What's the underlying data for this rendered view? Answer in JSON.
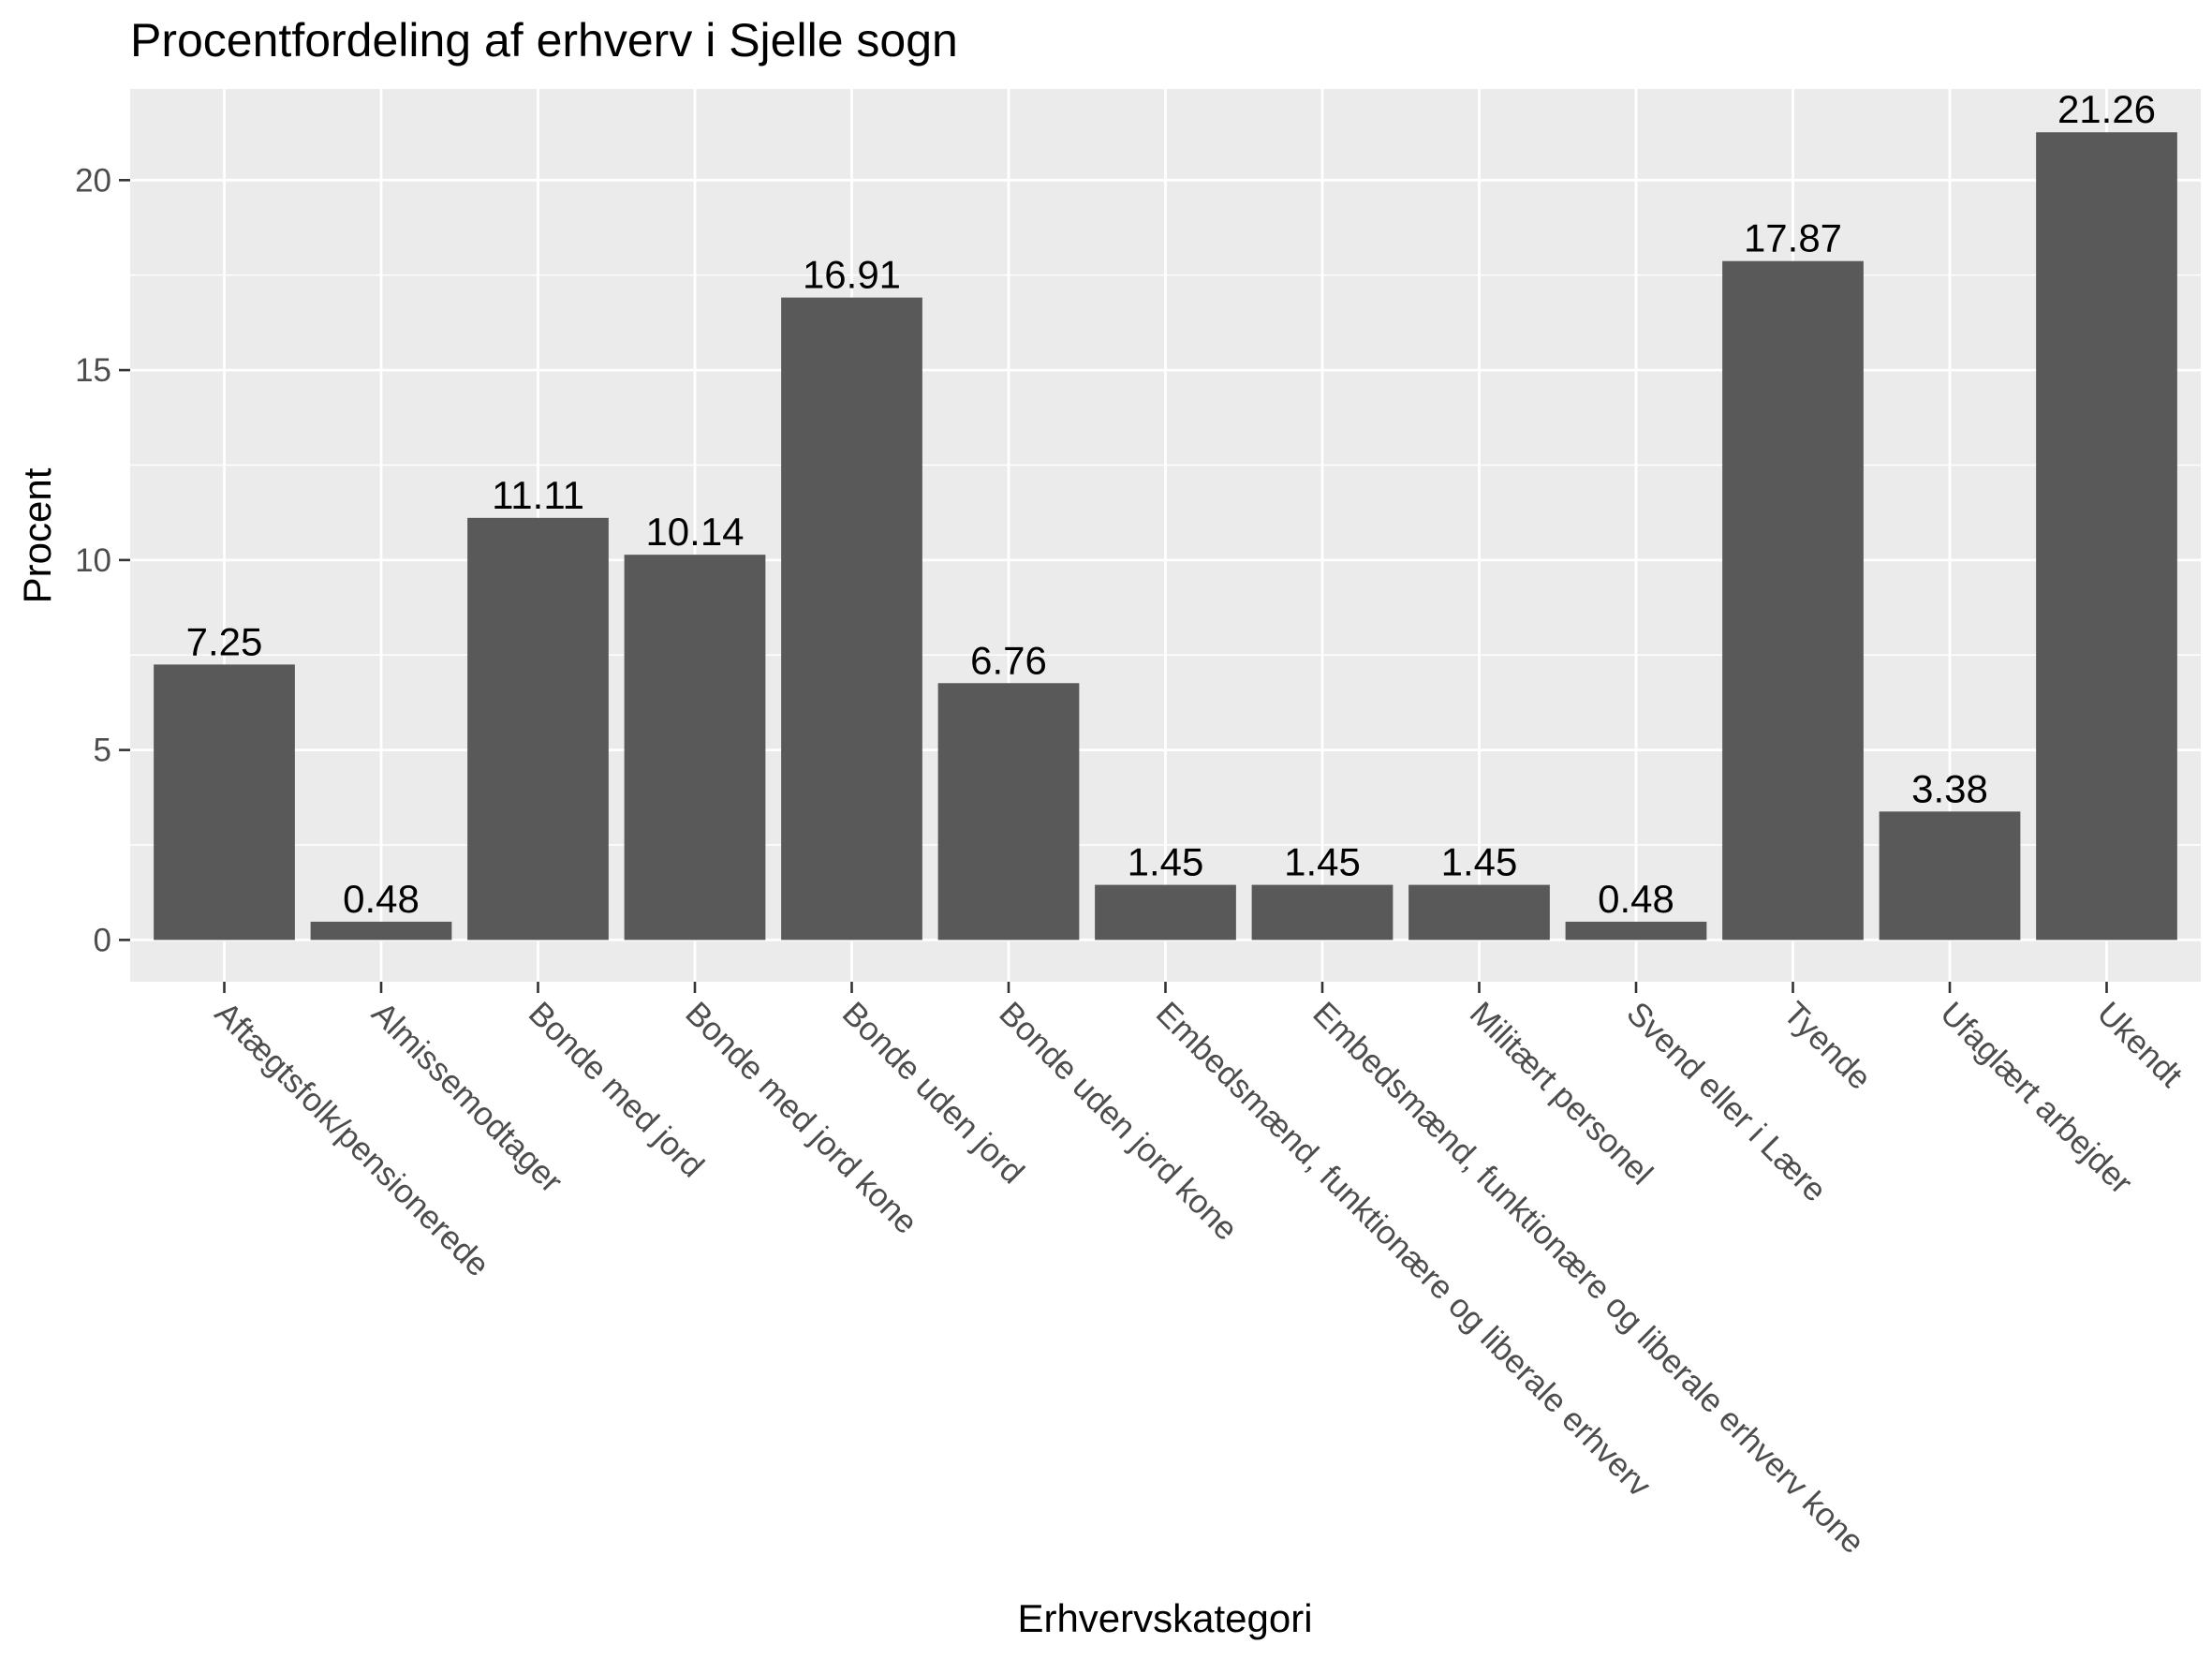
{
  "chart_data": {
    "type": "bar",
    "title": "Procentfordeling af erhverv i Sjelle sogn",
    "xlabel": "Erhvervskategori",
    "ylabel": "Procent",
    "ylim": [
      -1.1,
      22.4
    ],
    "yticks": [
      0,
      5,
      10,
      15,
      20
    ],
    "grid": true,
    "categories": [
      "Aftægtsfolk/pensionerede",
      "Almissemodtager",
      "Bonde med jord",
      "Bonde med jord kone",
      "Bonde uden jord",
      "Bonde uden jord kone",
      "Embedsmænd, funktionære og liberale erhverv",
      "Embedsmænd, funktionære og liberale erhverv kone",
      "Militært personel",
      "Svend eller i Lære",
      "Tyende",
      "Ufaglært arbejder",
      "Ukendt"
    ],
    "values": [
      7.25,
      0.48,
      11.11,
      10.14,
      16.91,
      6.76,
      1.45,
      1.45,
      1.45,
      0.48,
      17.87,
      3.38,
      21.26
    ],
    "value_labels": [
      "7.25",
      "0.48",
      "11.11",
      "10.14",
      "16.91",
      "6.76",
      "1.45",
      "1.45",
      "1.45",
      "0.48",
      "17.87",
      "3.38",
      "21.26"
    ],
    "colors": {
      "bar": "#595959",
      "panel": "#ebebeb",
      "grid_major": "#ffffff",
      "tick": "#333333"
    }
  }
}
